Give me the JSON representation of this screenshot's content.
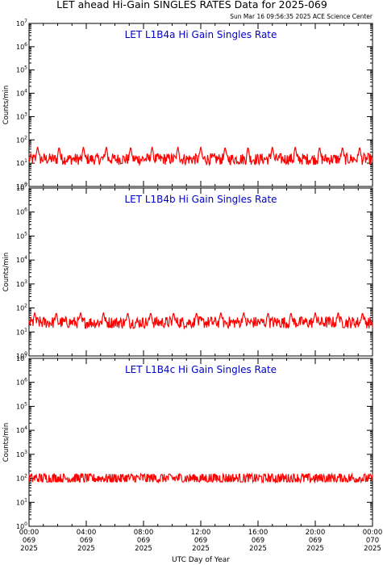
{
  "title": "LET ahead Hi-Gain SINGLES RATES Data for 2025-069",
  "timestamp": "Sun Mar 16 09:56:35 2025 ACE Science Center",
  "xlabel": "UTC Day of Year",
  "colors": {
    "series": "#ff0000",
    "panel_title": "#0000cc",
    "axis": "#000000"
  },
  "chart_data": [
    {
      "type": "line",
      "title": "LET L1B4a Hi Gain Singles Rate",
      "ylabel": "Counts/min",
      "yscale": "log",
      "ylim": [
        1,
        10000000
      ],
      "ytick_exponents": [
        "0",
        "1",
        "2",
        "3",
        "4",
        "5",
        "6",
        "7"
      ],
      "xlim_hours": [
        0,
        24
      ],
      "baseline": 15,
      "spike_hours": [
        0.6,
        2.1,
        3.8,
        5.4,
        7.1,
        8.6,
        10.4,
        12.0,
        13.7,
        15.3,
        17.0,
        18.6,
        20.3,
        21.9,
        23.1
      ],
      "spike_peak": 50,
      "range": [
        3,
        60
      ],
      "grid": false
    },
    {
      "type": "line",
      "title": "LET L1B4b Hi Gain Singles Rate",
      "ylabel": "Counts/min",
      "yscale": "log",
      "ylim": [
        1,
        10000000
      ],
      "ytick_exponents": [
        "0",
        "1",
        "2",
        "3",
        "4",
        "5",
        "6",
        "7"
      ],
      "xlim_hours": [
        0,
        24
      ],
      "baseline": 25,
      "spike_hours": [
        0.4,
        1.9,
        3.6,
        5.2,
        6.9,
        8.5,
        10.1,
        11.7,
        13.4,
        15.0,
        16.7,
        18.3,
        20.0,
        21.6,
        23.3
      ],
      "spike_peak": 65,
      "range": [
        12,
        75
      ],
      "grid": false
    },
    {
      "type": "line",
      "title": "LET L1B4c Hi Gain Singles Rate",
      "ylabel": "Counts/min",
      "yscale": "log",
      "ylim": [
        1,
        10000000
      ],
      "ytick_exponents": [
        "0",
        "1",
        "2",
        "3",
        "4",
        "5",
        "6",
        "7"
      ],
      "xlim_hours": [
        0,
        24
      ],
      "baseline": 100,
      "spike_hours": [],
      "spike_peak": 130,
      "range": [
        70,
        150
      ],
      "grid": false
    }
  ],
  "x_ticks": [
    {
      "time": "00:00",
      "day": "069",
      "year": "2025"
    },
    {
      "time": "04:00",
      "day": "069",
      "year": "2025"
    },
    {
      "time": "08:00",
      "day": "069",
      "year": "2025"
    },
    {
      "time": "12:00",
      "day": "069",
      "year": "2025"
    },
    {
      "time": "16:00",
      "day": "069",
      "year": "2025"
    },
    {
      "time": "20:00",
      "day": "069",
      "year": "2025"
    },
    {
      "time": "00:00",
      "day": "070",
      "year": "2025"
    }
  ]
}
